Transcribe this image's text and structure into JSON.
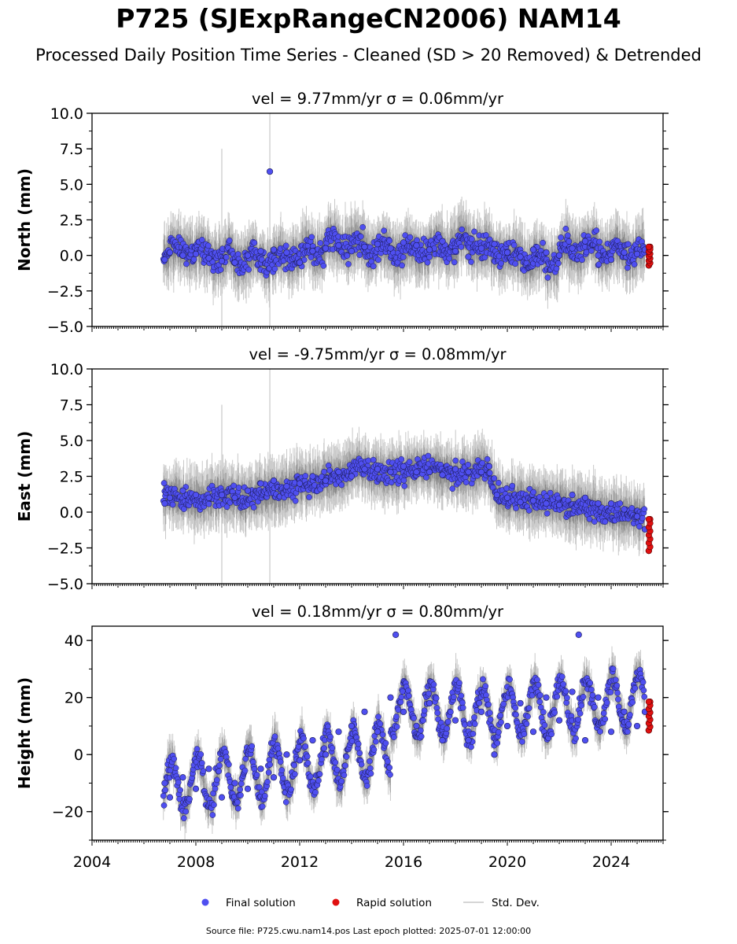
{
  "title": "P725 (SJExpRangeCN2006) NAM14",
  "subtitle": "Processed Daily Position Time Series - Cleaned (SD > 20 Removed) & Detrended",
  "footer": "Source file: P725.cwu.nam14.pos  Last epoch plotted: 2025-07-01 12:00:00",
  "colors": {
    "final": "#4f4ff0",
    "rapid": "#e01010",
    "stddev": "#c8c8c8",
    "edge": "#1a1a50"
  },
  "legend": [
    {
      "label": "Final solution",
      "marker": "dot",
      "color": "#4f4ff0"
    },
    {
      "label": "Rapid solution",
      "marker": "dot",
      "color": "#e01010"
    },
    {
      "label": "Std. Dev.",
      "marker": "line",
      "color": "#c8c8c8"
    }
  ],
  "chart_data": [
    {
      "type": "scatter",
      "title": "vel = 9.77mm/yr   σ = 0.06mm/yr",
      "ylabel": "North (mm)",
      "xlim": [
        2004,
        2026
      ],
      "ylim": [
        -5,
        10
      ],
      "yticks": [
        10.0,
        7.5,
        5.0,
        2.5,
        0.0,
        -2.5,
        -5.0
      ],
      "ytick_labels": [
        "10.0",
        "7.5",
        "5.0",
        "2.5",
        "0.0",
        "−2.5",
        "−5.0"
      ],
      "series": [
        {
          "name": "Final solution",
          "x": [
            2006.8,
            2007.0,
            2007.5,
            2008.0,
            2008.5,
            2009.0,
            2009.5,
            2010.0,
            2010.5,
            2010.85,
            2011.0,
            2011.5,
            2012.0,
            2012.5,
            2013.0,
            2013.5,
            2014.0,
            2014.5,
            2015.0,
            2015.5,
            2016.0,
            2016.5,
            2017.0,
            2017.5,
            2018.0,
            2018.5,
            2019.0,
            2019.5,
            2020.0,
            2020.5,
            2021.0,
            2021.5,
            2022.0,
            2022.5,
            2023.0,
            2023.5,
            2024.0,
            2024.5,
            2025.0,
            2025.3
          ],
          "y": [
            -0.3,
            0.2,
            0.0,
            0.1,
            -0.2,
            -0.4,
            -0.5,
            0.0,
            0.3,
            5.9,
            0.4,
            0.2,
            -0.5,
            0.3,
            0.5,
            0.7,
            0.3,
            0.6,
            0.8,
            0.5,
            0.9,
            0.7,
            0.4,
            1.0,
            0.3,
            -0.1,
            0.5,
            0.8,
            0.2,
            -0.1,
            0.4,
            0.2,
            0.0,
            0.5,
            1.0,
            0.0,
            -0.3,
            0.2,
            0.1,
            0.4
          ]
        },
        {
          "name": "Rapid solution",
          "x": [
            2025.45,
            2025.5
          ],
          "y": [
            -0.7,
            0.6
          ]
        }
      ]
    },
    {
      "type": "scatter",
      "title": "vel = -9.75mm/yr   σ = 0.08mm/yr",
      "ylabel": "East (mm)",
      "xlim": [
        2004,
        2026
      ],
      "ylim": [
        -5,
        10
      ],
      "yticks": [
        10.0,
        7.5,
        5.0,
        2.5,
        0.0,
        -2.5,
        -5.0
      ],
      "ytick_labels": [
        "10.0",
        "7.5",
        "5.0",
        "2.5",
        "0.0",
        "−2.5",
        "−5.0"
      ],
      "series": [
        {
          "name": "Final solution",
          "x": [
            2006.8,
            2007.0,
            2007.5,
            2008.0,
            2008.5,
            2009.0,
            2009.5,
            2010.0,
            2010.5,
            2011.0,
            2011.5,
            2012.0,
            2012.5,
            2013.0,
            2013.5,
            2014.0,
            2014.5,
            2015.0,
            2015.5,
            2016.0,
            2016.5,
            2017.0,
            2017.5,
            2018.0,
            2018.5,
            2019.0,
            2019.3,
            2019.6,
            2020.0,
            2020.5,
            2021.0,
            2021.5,
            2022.0,
            2022.5,
            2023.0,
            2023.5,
            2024.0,
            2024.5,
            2025.0,
            2025.3
          ],
          "y": [
            0.6,
            1.0,
            1.5,
            1.2,
            1.0,
            1.2,
            1.0,
            1.5,
            2.0,
            2.2,
            1.8,
            2.0,
            2.5,
            2.2,
            2.8,
            2.5,
            3.0,
            3.0,
            2.8,
            3.2,
            2.8,
            2.8,
            2.6,
            3.0,
            2.8,
            2.8,
            3.2,
            1.2,
            1.0,
            0.7,
            0.8,
            0.6,
            0.5,
            1.2,
            1.0,
            0.6,
            0.6,
            0.2,
            -0.3,
            -1.2
          ]
        },
        {
          "name": "Rapid solution",
          "x": [
            2025.45,
            2025.5
          ],
          "y": [
            -2.7,
            -0.5
          ]
        }
      ]
    },
    {
      "type": "scatter",
      "title": "vel = 0.18mm/yr   σ = 0.80mm/yr",
      "ylabel": "Height (mm)",
      "xlim": [
        2004,
        2026
      ],
      "ylim": [
        -30,
        45
      ],
      "yticks": [
        40,
        20,
        0,
        -20
      ],
      "ytick_labels": [
        "40",
        "20",
        "0",
        "−20"
      ],
      "xticks": [
        2004,
        2008,
        2012,
        2016,
        2020,
        2024
      ],
      "xtick_labels": [
        "2004",
        "2008",
        "2012",
        "2016",
        "2020",
        "2024"
      ],
      "series": [
        {
          "name": "Final solution",
          "x": [
            2006.8,
            2007.0,
            2007.5,
            2008.0,
            2008.5,
            2009.0,
            2009.5,
            2010.0,
            2010.5,
            2011.0,
            2011.5,
            2012.0,
            2012.5,
            2013.0,
            2013.5,
            2014.0,
            2014.5,
            2015.0,
            2015.5,
            2015.7,
            2016.0,
            2016.5,
            2017.0,
            2017.5,
            2018.0,
            2018.5,
            2019.0,
            2019.5,
            2020.0,
            2020.5,
            2021.0,
            2021.5,
            2022.0,
            2022.5,
            2022.75,
            2023.0,
            2023.5,
            2024.0,
            2024.5,
            2025.0,
            2025.3
          ],
          "y": [
            -10,
            -15,
            -8,
            -12,
            -5,
            -15,
            -10,
            -12,
            -5,
            -8,
            0,
            -2,
            5,
            0,
            8,
            10,
            15,
            8,
            20,
            42,
            15,
            10,
            18,
            5,
            12,
            5,
            15,
            0,
            10,
            18,
            8,
            20,
            12,
            22,
            42,
            5,
            20,
            8,
            15,
            10,
            15
          ]
        },
        {
          "name": "Rapid solution",
          "x": [
            2025.45,
            2025.5
          ],
          "y": [
            8.5,
            18.5
          ]
        }
      ]
    }
  ]
}
